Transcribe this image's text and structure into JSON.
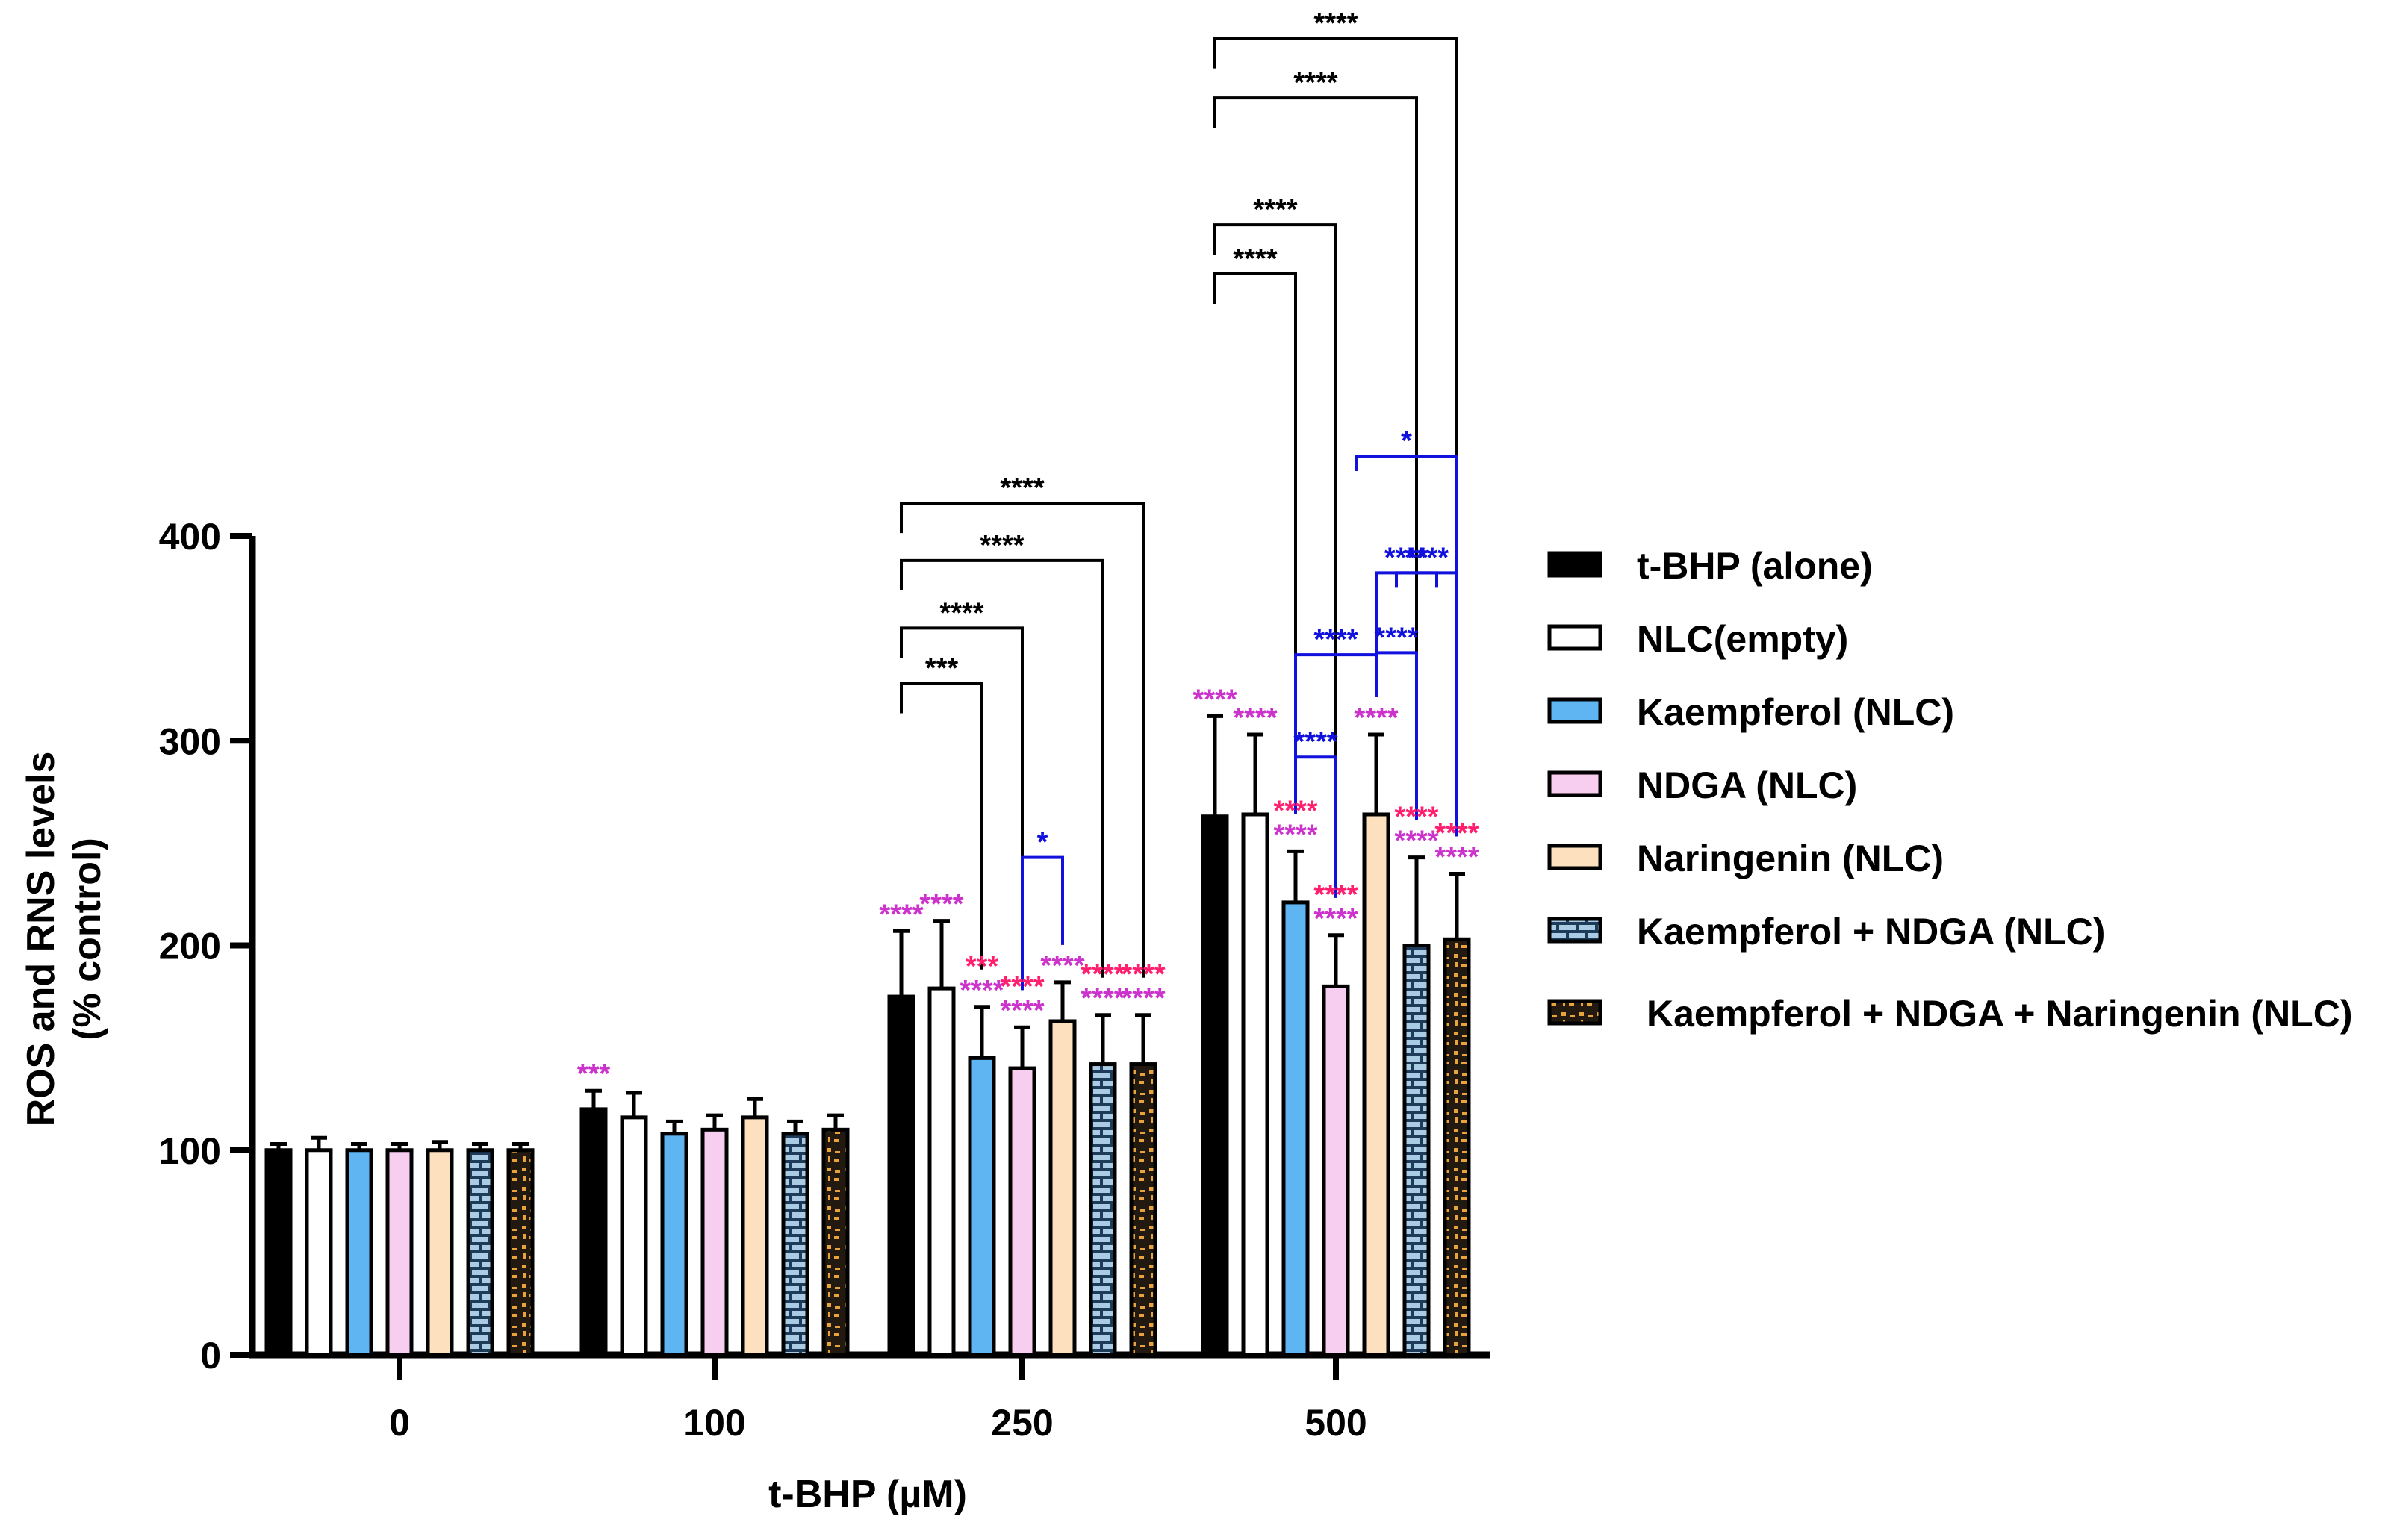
{
  "chart_data": {
    "type": "bar",
    "xlabel": "t-BHP (µM)",
    "ylabel_line1": "ROS and RNS levels",
    "ylabel_line2": "(% control)",
    "ylim": [
      0,
      400
    ],
    "yticks": [
      0,
      100,
      200,
      300,
      400
    ],
    "categories": [
      "0",
      "100",
      "250",
      "500"
    ],
    "series": [
      {
        "name": "t-BHP (alone)",
        "fill": "black",
        "values": [
          100,
          120,
          175,
          263
        ],
        "errors": [
          3,
          9,
          32,
          49
        ]
      },
      {
        "name": "NLC(empty)",
        "fill": "white",
        "values": [
          100,
          116,
          179,
          264
        ],
        "errors": [
          6,
          12,
          33,
          39
        ]
      },
      {
        "name": "Kaempferol (NLC)",
        "fill": "blue",
        "values": [
          100,
          108,
          145,
          221
        ],
        "errors": [
          3,
          6,
          25,
          25
        ]
      },
      {
        "name": "NDGA (NLC)",
        "fill": "pink",
        "values": [
          100,
          110,
          140,
          180
        ],
        "errors": [
          3,
          7,
          20,
          25
        ]
      },
      {
        "name": "Naringenin (NLC)",
        "fill": "orange",
        "values": [
          100,
          116,
          163,
          264
        ],
        "errors": [
          4,
          9,
          19,
          39
        ]
      },
      {
        "name": "Kaempferol + NDGA (NLC)",
        "fill": "bricks",
        "values": [
          100,
          108,
          142,
          200
        ],
        "errors": [
          3,
          6,
          24,
          43
        ]
      },
      {
        "name": "Kaempferol + NDGA + Naringenin (NLC)",
        "fill": "dots",
        "values": [
          100,
          110,
          142,
          203
        ],
        "errors": [
          3,
          7,
          24,
          32
        ]
      }
    ],
    "bar_annotations": [
      {
        "cat": 1,
        "series": 0,
        "lines": [
          {
            "text": "***",
            "color": "#cc33cc"
          }
        ]
      },
      {
        "cat": 2,
        "series": 0,
        "lines": [
          {
            "text": "****",
            "color": "#cc33cc"
          }
        ]
      },
      {
        "cat": 2,
        "series": 1,
        "lines": [
          {
            "text": "****",
            "color": "#cc33cc"
          }
        ]
      },
      {
        "cat": 2,
        "series": 2,
        "lines": [
          {
            "text": "***",
            "color": "#ff1f6e"
          },
          {
            "text": "****",
            "color": "#cc33cc"
          }
        ]
      },
      {
        "cat": 2,
        "series": 3,
        "lines": [
          {
            "text": "****",
            "color": "#ff1f6e"
          },
          {
            "text": "****",
            "color": "#cc33cc"
          }
        ]
      },
      {
        "cat": 2,
        "series": 4,
        "lines": [
          {
            "text": "****",
            "color": "#cc33cc"
          }
        ]
      },
      {
        "cat": 2,
        "series": 5,
        "lines": [
          {
            "text": "****",
            "color": "#ff1f6e"
          },
          {
            "text": "****",
            "color": "#cc33cc"
          }
        ]
      },
      {
        "cat": 2,
        "series": 6,
        "lines": [
          {
            "text": "****",
            "color": "#ff1f6e"
          },
          {
            "text": "****",
            "color": "#cc33cc"
          }
        ]
      },
      {
        "cat": 3,
        "series": 0,
        "lines": [
          {
            "text": "****",
            "color": "#cc33cc"
          }
        ]
      },
      {
        "cat": 3,
        "series": 1,
        "lines": [
          {
            "text": "****",
            "color": "#cc33cc"
          }
        ]
      },
      {
        "cat": 3,
        "series": 2,
        "lines": [
          {
            "text": "****",
            "color": "#ff1f6e"
          },
          {
            "text": "****",
            "color": "#cc33cc"
          }
        ]
      },
      {
        "cat": 3,
        "series": 3,
        "lines": [
          {
            "text": "****",
            "color": "#ff1f6e"
          },
          {
            "text": "****",
            "color": "#cc33cc"
          }
        ]
      },
      {
        "cat": 3,
        "series": 4,
        "lines": [
          {
            "text": "****",
            "color": "#cc33cc"
          }
        ]
      },
      {
        "cat": 3,
        "series": 5,
        "lines": [
          {
            "text": "****",
            "color": "#ff1f6e"
          },
          {
            "text": "****",
            "color": "#cc33cc"
          }
        ]
      },
      {
        "cat": 3,
        "series": 6,
        "lines": [
          {
            "text": "****",
            "color": "#ff1f6e"
          },
          {
            "text": "****",
            "color": "#cc33cc"
          }
        ]
      }
    ],
    "brackets": [
      {
        "cat": 2,
        "from": 0,
        "to": 2,
        "level": 328,
        "text": "***",
        "color": "#000000"
      },
      {
        "cat": 2,
        "from": 0,
        "to": 3,
        "level": 355,
        "text": "****",
        "color": "#000000"
      },
      {
        "cat": 2,
        "from": 0,
        "to": 5,
        "level": 388,
        "text": "****",
        "color": "#000000"
      },
      {
        "cat": 2,
        "from": 0,
        "to": 6,
        "level": 416,
        "text": "****",
        "color": "#000000"
      },
      {
        "cat": 2,
        "from": 3,
        "to": 4,
        "level": 243,
        "text": "*",
        "color": "#1111dd"
      },
      {
        "cat": 3,
        "from": 0,
        "to": 2,
        "level": 528,
        "text": "****",
        "color": "#000000"
      },
      {
        "cat": 3,
        "from": 0,
        "to": 3,
        "level": 552,
        "text": "****",
        "color": "#000000"
      },
      {
        "cat": 3,
        "from": 0,
        "to": 5,
        "level": 614,
        "text": "****",
        "color": "#000000"
      },
      {
        "cat": 3,
        "from": 0,
        "to": 6,
        "level": 643,
        "text": "****",
        "color": "#000000"
      },
      {
        "cat": 3,
        "from": 2,
        "to": 3,
        "level": 292,
        "text": "****",
        "color": "#1111dd"
      },
      {
        "cat": 3,
        "from": 2,
        "to": 4,
        "level": 342,
        "text": "****",
        "color": "#1111dd"
      },
      {
        "cat": 3,
        "from": 4,
        "to": 5,
        "level": 343,
        "text": "****",
        "color": "#1111dd"
      },
      {
        "cat": 3,
        "from": 4,
        "to": 5.5,
        "level": 382,
        "text": "****",
        "color": "#1111dd"
      },
      {
        "cat": 3,
        "from": 4.5,
        "to": 6,
        "level": 382,
        "text": "****",
        "color": "#1111dd"
      },
      {
        "cat": 3,
        "from": 3.5,
        "to": 6,
        "level": 439,
        "text": "*",
        "color": "#1111dd"
      }
    ]
  },
  "colors": {
    "black_fill": "#000000",
    "white_fill": "#ffffff",
    "blue_fill": "#5fb4f2",
    "pink_fill": "#f7cdf0",
    "orange_fill": "#fde0bd",
    "bricks_bg": "#a9cbe4",
    "bricks_line": "#1e3c5a",
    "dots_bg": "#221a10",
    "dots_fg": "#e8a33a",
    "magenta_star": "#cc33cc",
    "red_star": "#ff1f6e",
    "blue_star": "#1111dd"
  }
}
